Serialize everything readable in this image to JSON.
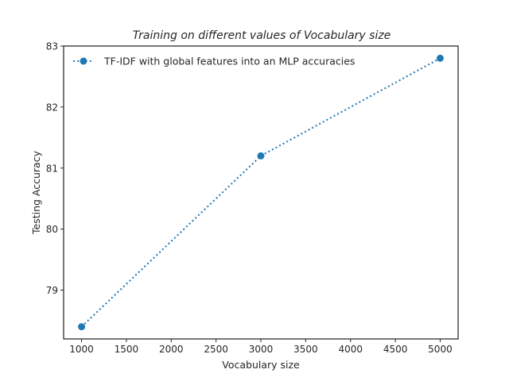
{
  "chart_data": {
    "type": "line",
    "title": "Training on different values of Vocabulary size",
    "xlabel": "Vocabulary size",
    "ylabel": "Testing Accuracy",
    "xlim": [
      800,
      5200
    ],
    "ylim": [
      78.2,
      83.0
    ],
    "xticks": [
      1000,
      1500,
      2000,
      2500,
      3000,
      3500,
      4000,
      4500,
      5000
    ],
    "yticks": [
      79,
      80,
      81,
      82,
      83
    ],
    "grid": false,
    "legend_position": "top-left",
    "series": [
      {
        "name": "TF-IDF with global features into an MLP accuracies",
        "color": "#1f77b4",
        "line_style": "dotted",
        "marker": "circle",
        "x": [
          1000,
          3000,
          5000
        ],
        "y": [
          78.4,
          81.2,
          82.8
        ]
      }
    ]
  }
}
